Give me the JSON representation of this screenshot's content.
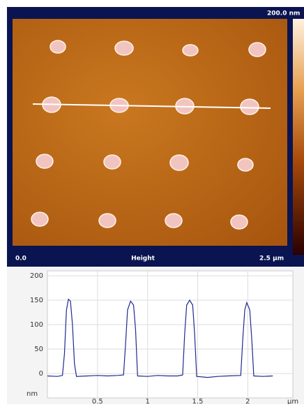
{
  "image": {
    "scale_max": "200.0 nm",
    "origin": "0.0",
    "channel": "Height",
    "scan_size": "2.5 µm"
  },
  "chart_data": {
    "type": "line",
    "y_unit": "nm",
    "x_unit": "µm",
    "x": [
      0,
      0.1,
      0.15,
      0.17,
      0.19,
      0.21,
      0.23,
      0.25,
      0.27,
      0.29,
      0.4,
      0.5,
      0.6,
      0.7,
      0.76,
      0.78,
      0.8,
      0.83,
      0.86,
      0.88,
      0.9,
      1.0,
      1.1,
      1.2,
      1.3,
      1.35,
      1.37,
      1.39,
      1.42,
      1.45,
      1.47,
      1.49,
      1.6,
      1.7,
      1.8,
      1.93,
      1.95,
      1.97,
      1.99,
      2.02,
      2.04,
      2.06,
      2.15,
      2.25
    ],
    "series": [
      {
        "color": "#1f2a8f",
        "values": [
          -5,
          -6,
          -4,
          40,
          130,
          152,
          148,
          100,
          20,
          -6,
          -5,
          -4,
          -5,
          -4,
          -3,
          60,
          130,
          148,
          140,
          90,
          -5,
          -6,
          -4,
          -5,
          -5,
          -3,
          80,
          140,
          150,
          140,
          80,
          -6,
          -8,
          -6,
          -5,
          -4,
          70,
          130,
          145,
          130,
          70,
          -5,
          -6,
          -5
        ]
      }
    ],
    "xlim": [
      0,
      2.45
    ],
    "ylim": [
      -50,
      210
    ],
    "xticks": [
      0.5,
      1,
      1.5,
      2
    ],
    "yticks": [
      0,
      50,
      100,
      150,
      200
    ],
    "grid": true
  }
}
